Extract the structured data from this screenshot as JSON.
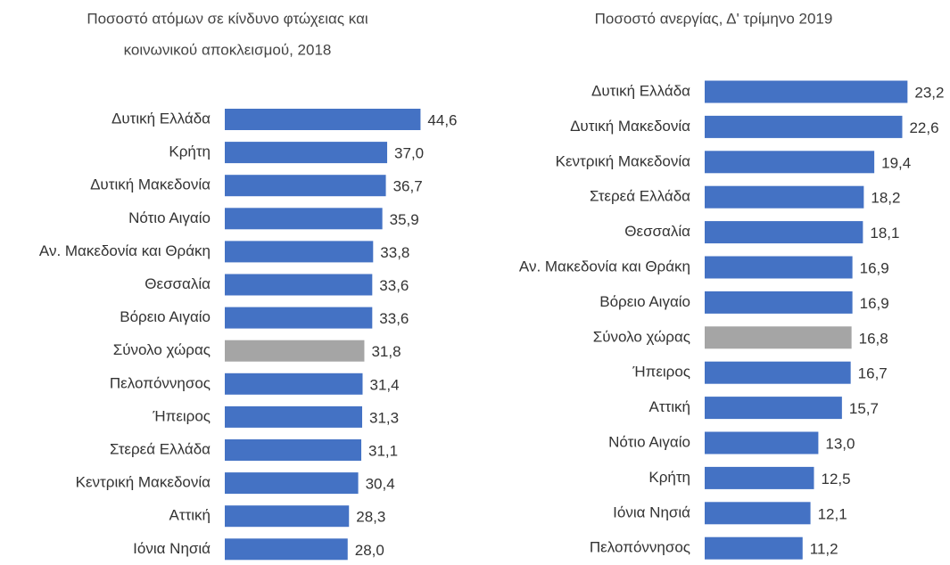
{
  "chart_data": [
    {
      "type": "bar",
      "orientation": "horizontal",
      "title": [
        "Ποσοστό ατόμων σε κίνδυνο φτώχειας και",
        "κοινωνικού αποκλεισμού, 2018"
      ],
      "categories": [
        "Δυτική Ελλάδα",
        "Κρήτη",
        "Δυτική Μακεδονία",
        "Νότιο Αιγαίο",
        "Αν. Μακεδονία και Θράκη",
        "Θεσσαλία",
        "Βόρειο Αιγαίο",
        "Σύνολο χώρας",
        "Πελοπόννησος",
        "Ήπειρος",
        "Στερεά Ελλάδα",
        "Κεντρική Μακεδονία",
        "Αττική",
        "Ιόνια Νησιά"
      ],
      "values": [
        44.6,
        37.0,
        36.7,
        35.9,
        33.8,
        33.6,
        33.6,
        31.8,
        31.4,
        31.3,
        31.1,
        30.4,
        28.3,
        28.0
      ],
      "value_labels": [
        "44,6",
        "37,0",
        "36,7",
        "35,9",
        "33,8",
        "33,6",
        "33,6",
        "31,8",
        "31,4",
        "31,3",
        "31,1",
        "30,4",
        "28,3",
        "28,0"
      ],
      "colors": [
        "#4472c4",
        "#4472c4",
        "#4472c4",
        "#4472c4",
        "#4472c4",
        "#4472c4",
        "#4472c4",
        "#a5a5a5",
        "#4472c4",
        "#4472c4",
        "#4472c4",
        "#4472c4",
        "#4472c4",
        "#4472c4"
      ],
      "xlim": [
        0,
        50
      ]
    },
    {
      "type": "bar",
      "orientation": "horizontal",
      "title": [
        "Ποσοστό ανεργίας, Δ' τρίμηνο 2019"
      ],
      "categories": [
        "Δυτική Ελλάδα",
        "Δυτική Μακεδονία",
        "Κεντρική Μακεδονία",
        "Στερεά Ελλάδα",
        "Θεσσαλία",
        "Αν. Μακεδονία και Θράκη",
        "Βόρειο Αιγαίο",
        "Σύνολο χώρας",
        "Ήπειρος",
        "Αττική",
        "Νότιο Αιγαίο",
        "Κρήτη",
        "Ιόνια Νησιά",
        "Πελοπόννησος"
      ],
      "values": [
        23.2,
        22.6,
        19.4,
        18.2,
        18.1,
        16.9,
        16.9,
        16.8,
        16.7,
        15.7,
        13.0,
        12.5,
        12.1,
        11.2
      ],
      "value_labels": [
        "23,2",
        "22,6",
        "19,4",
        "18,2",
        "18,1",
        "16,9",
        "16,9",
        "16,8",
        "16,7",
        "15,7",
        "13,0",
        "12,5",
        "12,1",
        "11,2"
      ],
      "colors": [
        "#4472c4",
        "#4472c4",
        "#4472c4",
        "#4472c4",
        "#4472c4",
        "#4472c4",
        "#4472c4",
        "#a5a5a5",
        "#4472c4",
        "#4472c4",
        "#4472c4",
        "#4472c4",
        "#4472c4",
        "#4472c4"
      ],
      "xlim": [
        0,
        25
      ]
    }
  ]
}
